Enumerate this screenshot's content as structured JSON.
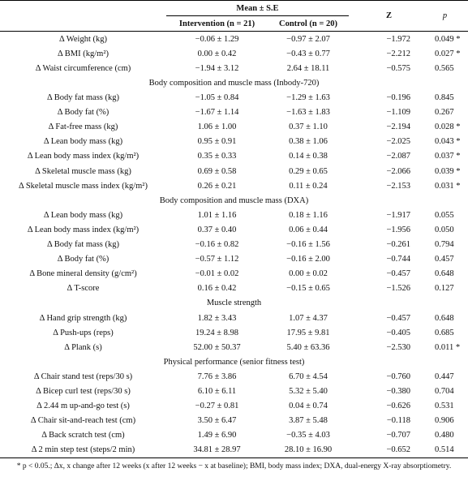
{
  "header": {
    "group": "Mean ± S.E",
    "intervention": "Intervention (n = 21)",
    "control": "Control (n = 20)",
    "z": "Z",
    "p": "p"
  },
  "sections": [
    {
      "rows": [
        [
          "Δ Weight (kg)",
          "−0.06 ± 1.29",
          "−0.97 ± 2.07",
          "−1.972",
          "0.049 *"
        ],
        [
          "Δ BMI (kg/m²)",
          "0.00 ± 0.42",
          "−0.43 ± 0.77",
          "−2.212",
          "0.027 *"
        ],
        [
          "Δ Waist circumference (cm)",
          "−1.94 ± 3.12",
          "2.64 ± 18.11",
          "−0.575",
          "0.565"
        ]
      ]
    },
    {
      "title": "Body composition and muscle mass (Inbody-720)",
      "rows": [
        [
          "Δ Body fat mass (kg)",
          "−1.05 ± 0.84",
          "−1.29 ± 1.63",
          "−0.196",
          "0.845"
        ],
        [
          "Δ Body fat (%)",
          "−1.67 ± 1.14",
          "−1.63 ± 1.83",
          "−1.109",
          "0.267"
        ],
        [
          "Δ Fat-free mass (kg)",
          "1.06 ± 1.00",
          "0.37 ± 1.10",
          "−2.194",
          "0.028 *"
        ],
        [
          "Δ Lean body mass (kg)",
          "0.95 ± 0.91",
          "0.38 ± 1.06",
          "−2.025",
          "0.043 *"
        ],
        [
          "Δ Lean body mass index (kg/m²)",
          "0.35 ± 0.33",
          "0.14 ± 0.38",
          "−2.087",
          "0.037 *"
        ],
        [
          "Δ Skeletal muscle mass (kg)",
          "0.69 ± 0.58",
          "0.29 ± 0.65",
          "−2.066",
          "0.039 *"
        ],
        [
          "Δ Skeletal muscle mass index (kg/m²)",
          "0.26 ± 0.21",
          "0.11 ± 0.24",
          "−2.153",
          "0.031 *"
        ]
      ]
    },
    {
      "title": "Body composition and muscle mass (DXA)",
      "rows": [
        [
          "Δ Lean body mass (kg)",
          "1.01 ± 1.16",
          "0.18 ± 1.16",
          "−1.917",
          "0.055"
        ],
        [
          "Δ Lean body mass index (kg/m²)",
          "0.37 ± 0.40",
          "0.06 ± 0.44",
          "−1.956",
          "0.050"
        ],
        [
          "Δ Body fat mass (kg)",
          "−0.16 ± 0.82",
          "−0.16 ± 1.56",
          "−0.261",
          "0.794"
        ],
        [
          "Δ Body fat (%)",
          "−0.57 ± 1.12",
          "−0.16 ± 2.00",
          "−0.744",
          "0.457"
        ],
        [
          "Δ Bone mineral density (g/cm²)",
          "−0.01 ± 0.02",
          "0.00 ± 0.02",
          "−0.457",
          "0.648"
        ],
        [
          "Δ T-score",
          "0.16 ± 0.42",
          "−0.15 ± 0.65",
          "−1.526",
          "0.127"
        ]
      ]
    },
    {
      "title": "Muscle strength",
      "rows": [
        [
          "Δ Hand grip strength (kg)",
          "1.82 ± 3.43",
          "1.07 ± 4.37",
          "−0.457",
          "0.648"
        ],
        [
          "Δ Push-ups (reps)",
          "19.24 ± 8.98",
          "17.95 ± 9.81",
          "−0.405",
          "0.685"
        ],
        [
          "Δ Plank (s)",
          "52.00 ± 50.37",
          "5.40 ± 63.36",
          "−2.530",
          "0.011 *"
        ]
      ]
    },
    {
      "title": "Physical performance (senior fitness test)",
      "rows": [
        [
          "Δ Chair stand test (reps/30 s)",
          "7.76 ± 3.86",
          "6.70 ± 4.54",
          "−0.760",
          "0.447"
        ],
        [
          "Δ Bicep curl test (reps/30 s)",
          "6.10 ± 6.11",
          "5.32 ± 5.40",
          "−0.380",
          "0.704"
        ],
        [
          "Δ 2.44 m up-and-go test (s)",
          "−0.27 ± 0.81",
          "0.04 ± 0.74",
          "−0.626",
          "0.531"
        ],
        [
          "Δ Chair sit-and-reach test (cm)",
          "3.50 ± 6.47",
          "3.87 ± 5.48",
          "−0.118",
          "0.906"
        ],
        [
          "Δ Back scratch test (cm)",
          "1.49 ± 6.90",
          "−0.35 ± 4.03",
          "−0.707",
          "0.480"
        ],
        [
          "Δ 2 min step test (steps/2 min)",
          "34.81 ± 28.97",
          "28.10 ± 16.90",
          "−0.652",
          "0.514"
        ]
      ]
    }
  ],
  "footnote": "* p < 0.05.; Δx, x change after 12 weeks (x after 12 weeks − x at baseline); BMI, body mass index; DXA, dual-energy X-ray absorptiometry."
}
